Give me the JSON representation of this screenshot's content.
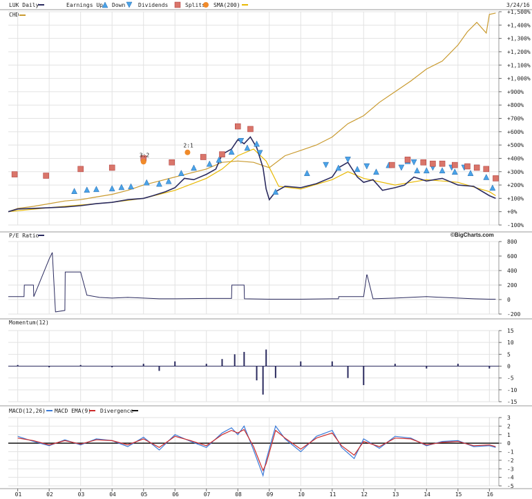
{
  "chart_data": [
    {
      "type": "line",
      "panel_title": "LUK Daily",
      "date_label": "3/24/16",
      "legend": {
        "ticker": "LUK Daily",
        "earnings_up": "Earnings Up",
        "earnings_down": "Down",
        "dividends": "Dividends",
        "splits": "Splits",
        "sma": "SMA(200)",
        "comparison": "CHD"
      },
      "watermark": "©BigCharts.com",
      "y_ticks": [
        "+1,500%",
        "+1,400%",
        "+1,300%",
        "+1,200%",
        "+1,100%",
        "+1,000%",
        "+900%",
        "+800%",
        "+700%",
        "+600%",
        "+500%",
        "+400%",
        "+300%",
        "+200%",
        "+100%",
        "+0%",
        "-100%"
      ],
      "ylim": [
        -100,
        1500
      ],
      "x_ticks": [
        "01",
        "02",
        "03",
        "04",
        "05",
        "06",
        "07",
        "08",
        "09",
        "10",
        "11",
        "12",
        "13",
        "14",
        "15",
        "16"
      ],
      "xlim": [
        2000.7,
        2016.3
      ],
      "series": [
        {
          "name": "LUK Daily",
          "color": "#2a2a5e",
          "x": [
            2000.7,
            2001,
            2001.5,
            2002,
            2002.5,
            2003,
            2003.5,
            2004,
            2004.5,
            2005,
            2005.3,
            2005.7,
            2006,
            2006.3,
            2006.6,
            2007,
            2007.3,
            2007.5,
            2007.8,
            2008,
            2008.2,
            2008.4,
            2008.6,
            2008.8,
            2008.9,
            2009,
            2009.2,
            2009.5,
            2010,
            2010.5,
            2011,
            2011.2,
            2011.5,
            2011.8,
            2012,
            2012.3,
            2012.6,
            2013,
            2013.3,
            2013.6,
            2014,
            2014.5,
            2015,
            2015.5,
            2016,
            2016.2
          ],
          "y": [
            0,
            20,
            25,
            30,
            35,
            45,
            60,
            70,
            90,
            100,
            120,
            150,
            180,
            250,
            240,
            280,
            320,
            430,
            470,
            540,
            510,
            560,
            480,
            330,
            170,
            90,
            150,
            190,
            180,
            210,
            260,
            330,
            370,
            260,
            220,
            240,
            160,
            180,
            200,
            260,
            230,
            250,
            200,
            190,
            120,
            100
          ]
        },
        {
          "name": "CHD",
          "color": "#c99a2e",
          "x": [
            2000.7,
            2001,
            2001.5,
            2002,
            2002.5,
            2003,
            2003.5,
            2004,
            2004.5,
            2005,
            2005.5,
            2006,
            2006.5,
            2007,
            2007.5,
            2008,
            2008.5,
            2009,
            2009.5,
            2010,
            2010.5,
            2011,
            2011.5,
            2012,
            2012.5,
            2013,
            2013.5,
            2014,
            2014.5,
            2015,
            2015.3,
            2015.6,
            2015.9,
            2016,
            2016.2
          ],
          "y": [
            0,
            25,
            40,
            60,
            80,
            90,
            110,
            130,
            160,
            200,
            230,
            260,
            290,
            320,
            370,
            380,
            370,
            330,
            420,
            460,
            500,
            560,
            660,
            720,
            820,
            900,
            980,
            1070,
            1130,
            1250,
            1350,
            1420,
            1340,
            1480,
            1490
          ]
        },
        {
          "name": "SMA(200)",
          "color": "#e8b800",
          "x": [
            2000.7,
            2002,
            2003,
            2004,
            2005,
            2006,
            2007,
            2007.5,
            2008,
            2008.5,
            2008.9,
            2009.3,
            2010,
            2011,
            2011.5,
            2012,
            2013,
            2014,
            2015,
            2016,
            2016.2
          ],
          "y": [
            0,
            30,
            50,
            70,
            100,
            160,
            250,
            320,
            420,
            470,
            380,
            190,
            170,
            240,
            300,
            250,
            200,
            240,
            220,
            150,
            120
          ]
        }
      ],
      "events": {
        "earnings_up": [
          [
            2002.8,
            155
          ],
          [
            2003.2,
            165
          ],
          [
            2003.5,
            170
          ],
          [
            2004,
            175
          ],
          [
            2004.3,
            185
          ],
          [
            2004.6,
            190
          ],
          [
            2005.1,
            220
          ],
          [
            2005.5,
            210
          ],
          [
            2005.8,
            230
          ],
          [
            2006.2,
            290
          ],
          [
            2006.6,
            330
          ],
          [
            2007.1,
            360
          ],
          [
            2007.4,
            390
          ],
          [
            2007.8,
            450
          ],
          [
            2008.3,
            480
          ],
          [
            2008.6,
            510
          ],
          [
            2009.2,
            150
          ],
          [
            2010.2,
            290
          ],
          [
            2011.2,
            330
          ],
          [
            2011.8,
            320
          ],
          [
            2012.4,
            300
          ],
          [
            2012.8,
            350
          ],
          [
            2013.4,
            380
          ],
          [
            2013.7,
            310
          ],
          [
            2014,
            310
          ],
          [
            2014.5,
            310
          ],
          [
            2014.9,
            300
          ],
          [
            2015.4,
            290
          ],
          [
            2015.9,
            260
          ],
          [
            2016.1,
            180
          ]
        ],
        "earnings_down": [
          [
            2008.1,
            530
          ],
          [
            2008.7,
            440
          ],
          [
            2010.8,
            350
          ],
          [
            2011.5,
            390
          ],
          [
            2012.1,
            340
          ],
          [
            2013.2,
            330
          ],
          [
            2013.6,
            370
          ],
          [
            2014.2,
            330
          ],
          [
            2014.8,
            330
          ],
          [
            2015.2,
            330
          ],
          [
            2015.6,
            330
          ]
        ],
        "dividends": [
          [
            2000.9,
            280
          ],
          [
            2001.9,
            270
          ],
          [
            2003,
            320
          ],
          [
            2004,
            330
          ],
          [
            2005,
            400
          ],
          [
            2005.9,
            370
          ],
          [
            2006.9,
            410
          ],
          [
            2007.5,
            430
          ],
          [
            2008,
            640
          ],
          [
            2008.4,
            620
          ],
          [
            2012.9,
            350
          ],
          [
            2013.4,
            390
          ],
          [
            2013.9,
            370
          ],
          [
            2014.2,
            360
          ],
          [
            2014.5,
            360
          ],
          [
            2014.9,
            350
          ],
          [
            2015.3,
            340
          ],
          [
            2015.6,
            330
          ],
          [
            2015.9,
            320
          ],
          [
            2016.2,
            250
          ]
        ],
        "splits": [
          {
            "x": 2005,
            "y": 375,
            "label": "3:2"
          },
          {
            "x": 2006.4,
            "y": 445,
            "label": "2:1"
          }
        ]
      }
    },
    {
      "type": "line",
      "panel_title": "P/E Ratio",
      "y_ticks": [
        "800",
        "600",
        "400",
        "200",
        "0",
        "-200"
      ],
      "ylim": [
        -200,
        800
      ],
      "series": [
        {
          "name": "P/E Ratio",
          "color": "#2a2a5e",
          "x": [
            2000.7,
            2001.2,
            2001.21,
            2001.5,
            2001.51,
            2002,
            2002.1,
            2002.2,
            2002.21,
            2002.5,
            2002.51,
            2003,
            2003.2,
            2003.21,
            2003.6,
            2004,
            2004.5,
            2005,
            2005.5,
            2006,
            2007,
            2007.8,
            2007.81,
            2008.2,
            2008.21,
            2009,
            2010,
            2011,
            2011.2,
            2011.21,
            2012,
            2012.1,
            2012.11,
            2012.3,
            2012.31,
            2013,
            2014,
            2014.5,
            2015,
            2015.5,
            2016,
            2016.2
          ],
          "y": [
            40,
            40,
            200,
            200,
            40,
            560,
            650,
            -170,
            -170,
            -150,
            380,
            380,
            60,
            60,
            30,
            20,
            30,
            20,
            10,
            10,
            15,
            15,
            200,
            200,
            10,
            5,
            5,
            10,
            10,
            40,
            40,
            340,
            340,
            10,
            10,
            20,
            40,
            30,
            20,
            10,
            5,
            5
          ]
        }
      ]
    },
    {
      "type": "bar",
      "panel_title": "Momentum(12)",
      "y_ticks": [
        "15",
        "10",
        "5",
        "0",
        "-5",
        "-10",
        "-15"
      ],
      "ylim": [
        -15,
        15
      ],
      "series": [
        {
          "name": "Momentum(12)",
          "color": "#2a2a5e",
          "x": [
            2001,
            2002,
            2003,
            2004,
            2005,
            2005.5,
            2006,
            2007,
            2007.5,
            2007.9,
            2008.2,
            2008.6,
            2008.8,
            2008.9,
            2009.2,
            2010,
            2011,
            2011.5,
            2012,
            2013,
            2014,
            2015,
            2016
          ],
          "y": [
            0.5,
            -0.5,
            0.5,
            -0.5,
            1,
            -2,
            2,
            1,
            3,
            5,
            6,
            -6,
            -12,
            7,
            -5,
            2,
            2,
            -5,
            -8,
            1,
            -1,
            1,
            -1
          ]
        }
      ]
    },
    {
      "type": "line",
      "panel_title": "MACD(12,26)",
      "legend": {
        "macd": "MACD(12,26)",
        "ema": "MACD EMA(9)",
        "divergence": "Divergence"
      },
      "y_ticks": [
        "3",
        "2",
        "1",
        "0",
        "-1",
        "-2",
        "-3",
        "-4",
        "-5"
      ],
      "ylim": [
        -5,
        3
      ],
      "series": [
        {
          "name": "MACD(12,26)",
          "color": "#3a7ad8",
          "x": [
            2001,
            2001.5,
            2002,
            2002.5,
            2003,
            2003.5,
            2004,
            2004.5,
            2005,
            2005.5,
            2006,
            2006.5,
            2007,
            2007.5,
            2007.8,
            2008,
            2008.2,
            2008.5,
            2008.8,
            2008.9,
            2009.2,
            2009.5,
            2010,
            2010.5,
            2011,
            2011.3,
            2011.7,
            2012,
            2012.5,
            2013,
            2013.5,
            2014,
            2014.5,
            2015,
            2015.5,
            2016,
            2016.2
          ],
          "y": [
            0.8,
            0.2,
            -0.3,
            0.4,
            -0.2,
            0.5,
            0.3,
            -0.4,
            0.7,
            -0.8,
            1,
            0.2,
            -0.5,
            1.2,
            1.8,
            1,
            2,
            -0.8,
            -3.8,
            -2,
            2,
            0.5,
            -1,
            0.8,
            1.5,
            -0.5,
            -1.8,
            0.5,
            -0.6,
            0.8,
            0.6,
            -0.3,
            0.2,
            0.3,
            -0.4,
            -0.3,
            -0.5
          ]
        },
        {
          "name": "MACD EMA(9)",
          "color": "#cc2b2b",
          "x": [
            2001,
            2001.5,
            2002,
            2002.5,
            2003,
            2003.5,
            2004,
            2004.5,
            2005,
            2005.5,
            2006,
            2006.5,
            2007,
            2007.5,
            2007.8,
            2008,
            2008.2,
            2008.5,
            2008.8,
            2008.9,
            2009.2,
            2009.5,
            2010,
            2010.5,
            2011,
            2011.3,
            2011.7,
            2012,
            2012.5,
            2013,
            2013.5,
            2014,
            2014.5,
            2015,
            2015.5,
            2016,
            2016.2
          ],
          "y": [
            0.6,
            0.3,
            -0.2,
            0.3,
            -0.1,
            0.4,
            0.3,
            -0.2,
            0.5,
            -0.5,
            0.8,
            0.3,
            -0.3,
            1,
            1.5,
            1.2,
            1.6,
            -0.4,
            -3.2,
            -2.4,
            1.5,
            0.6,
            -0.7,
            0.6,
            1.2,
            -0.3,
            -1.4,
            0.2,
            -0.4,
            0.6,
            0.5,
            -0.2,
            0.1,
            0.2,
            -0.3,
            -0.2,
            -0.4
          ]
        }
      ]
    }
  ]
}
